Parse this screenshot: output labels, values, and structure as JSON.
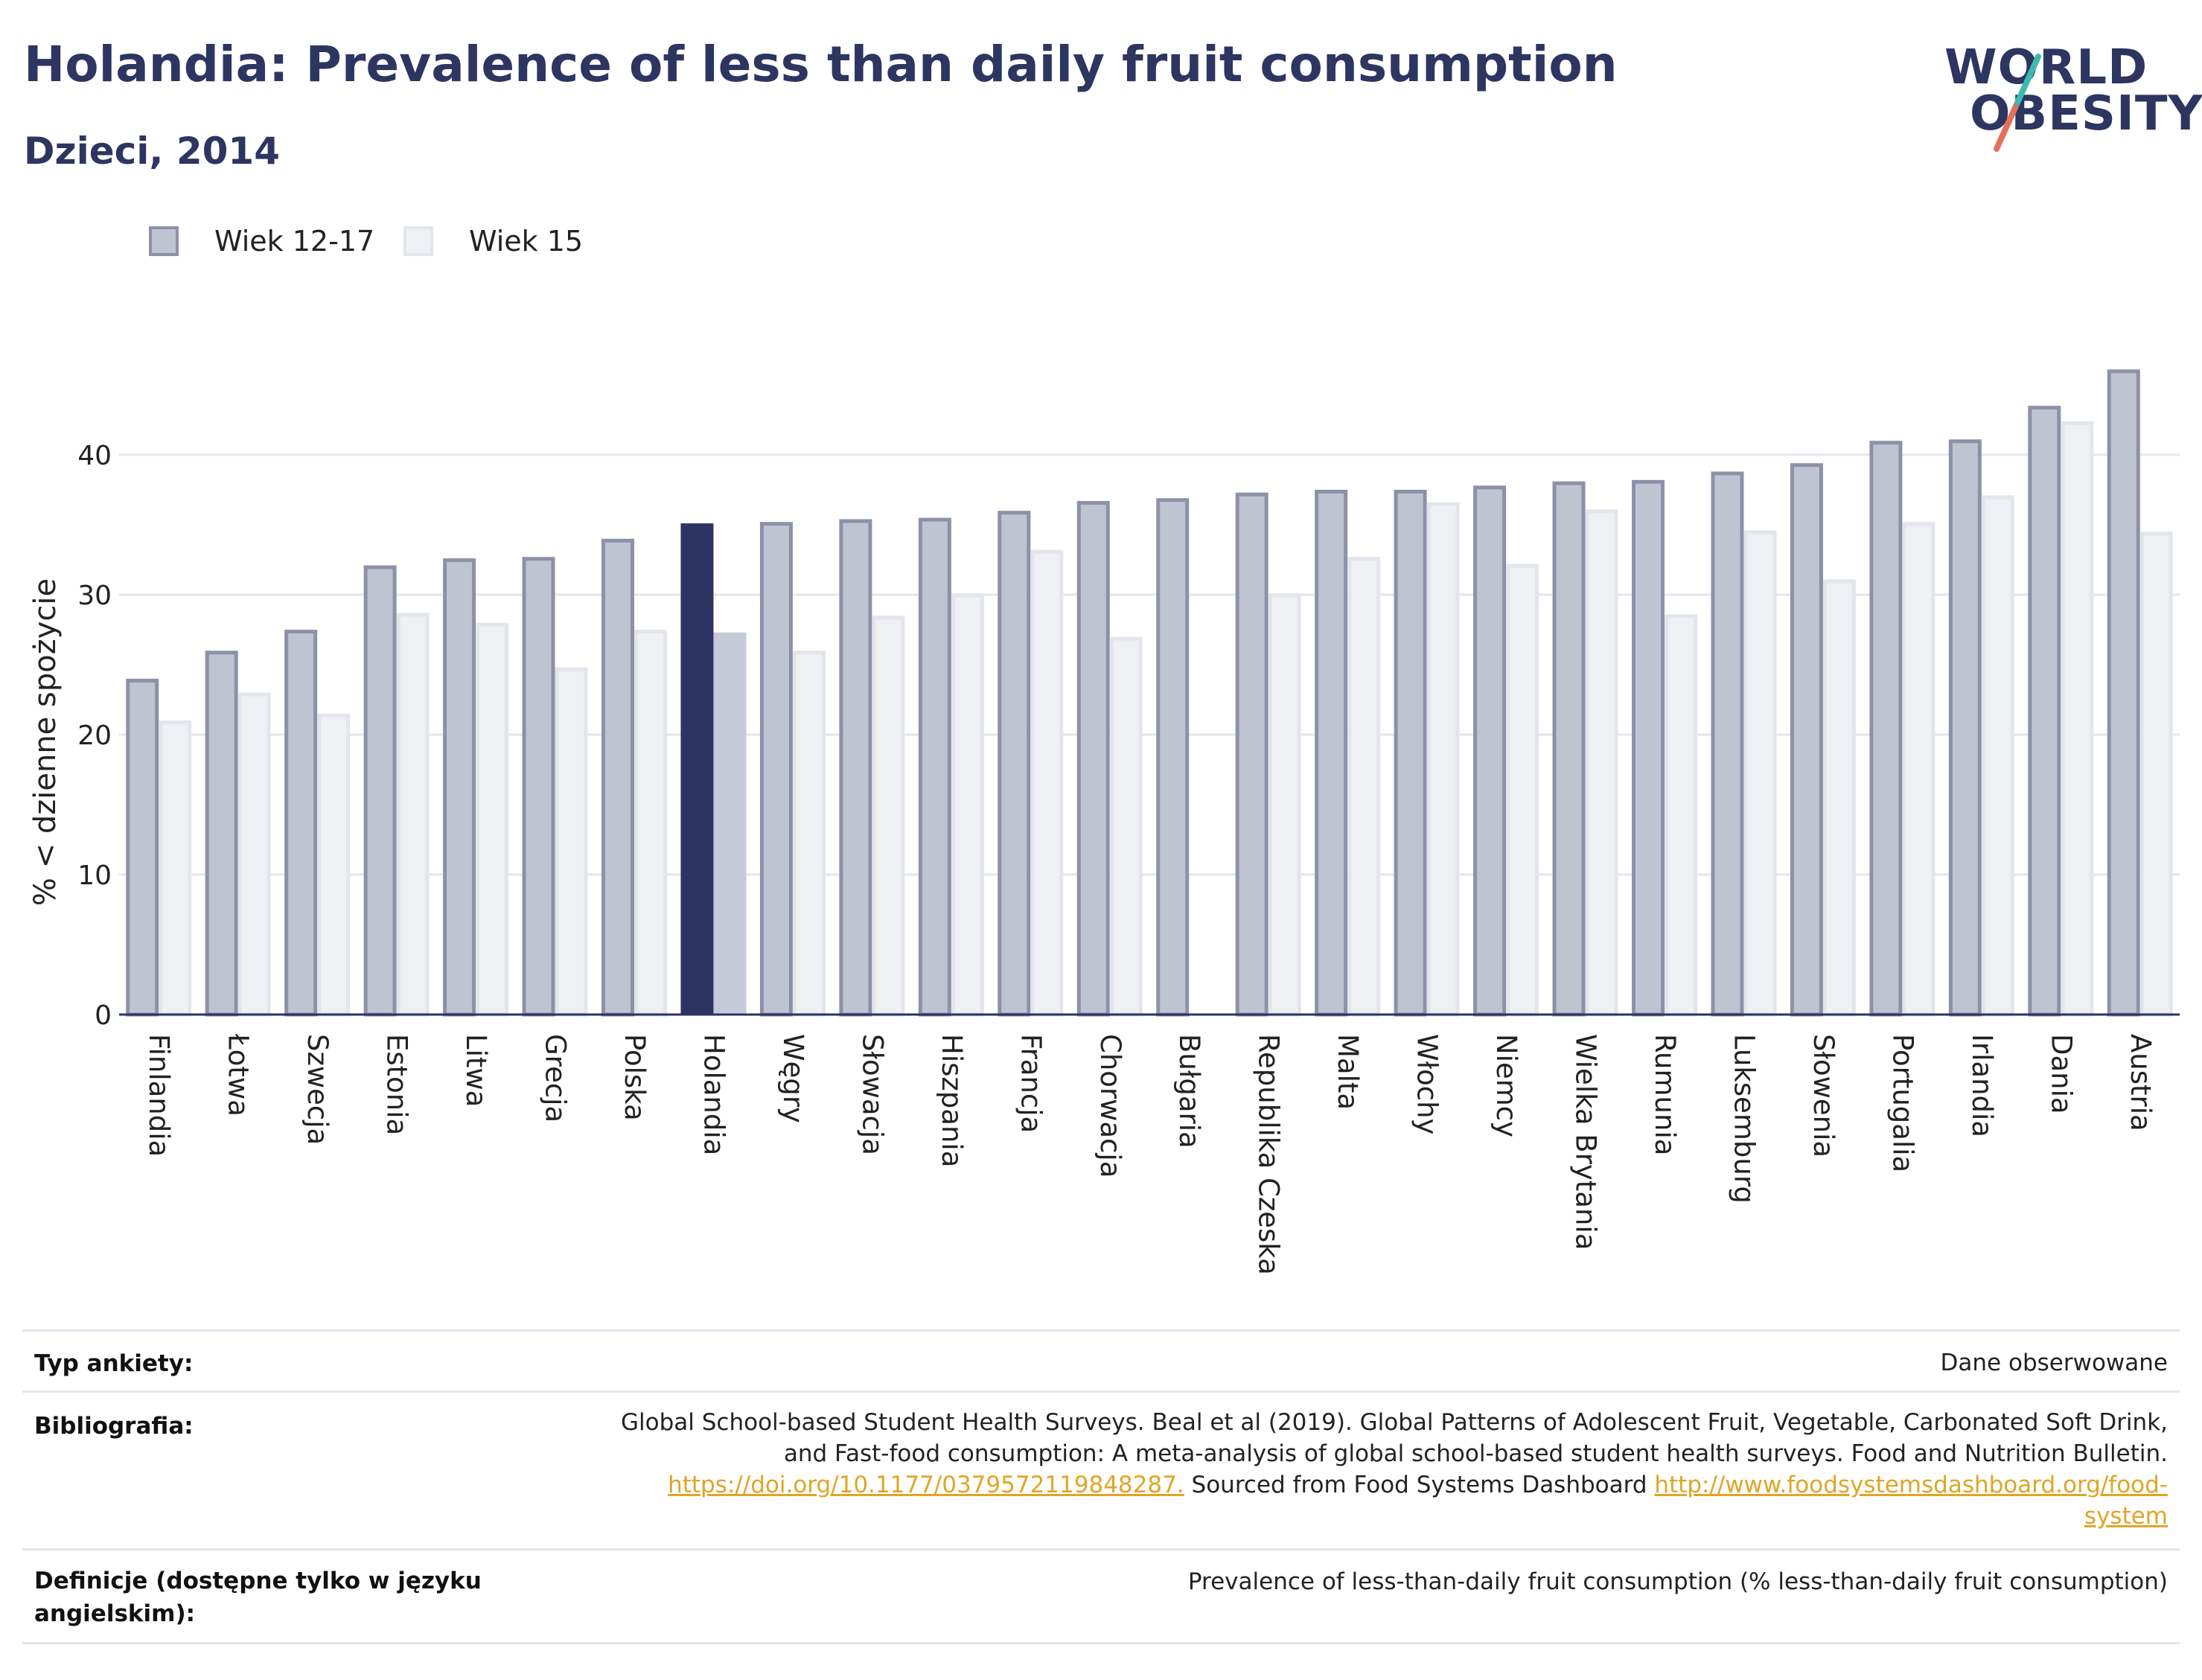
{
  "header": {
    "title": "Holandia: Prevalence of less than daily fruit consumption",
    "subtitle": "Dzieci, 2014"
  },
  "logo": {
    "line1": "WORLD",
    "line2": "OBESITY"
  },
  "colors": {
    "series1": "#c0c3d2",
    "series1_stroke": "#8d91a8",
    "series2": "#eef0f4",
    "series2_stroke": "#e3e5ec",
    "highlight1": "#2b3462",
    "highlight2": "#c6c9d7",
    "grid": "#e4e6ee",
    "axis": "#2b3462"
  },
  "chart_data": {
    "type": "bar",
    "ylabel": "% < dzienne spożycie",
    "yticks": [
      0,
      10,
      20,
      30,
      40
    ],
    "ylim": [
      0,
      48
    ],
    "highlight": "Holandia",
    "legend_position": "top-left",
    "categories": [
      "Finlandia",
      "Łotwa",
      "Szwecja",
      "Estonia",
      "Litwa",
      "Grecja",
      "Polska",
      "Holandia",
      "Węgry",
      "Słowacja",
      "Hiszpania",
      "Francja",
      "Chorwacja",
      "Bułgaria",
      "Republika Czeska",
      "Malta",
      "Włochy",
      "Niemcy",
      "Wielka Brytania",
      "Rumunia",
      "Luksemburg",
      "Słowenia",
      "Portugalia",
      "Irlandia",
      "Dania",
      "Austria"
    ],
    "series": [
      {
        "name": "Wiek 12-17",
        "values": [
          24.0,
          26.0,
          27.5,
          32.1,
          32.6,
          32.7,
          34.0,
          35.1,
          35.2,
          35.4,
          35.5,
          36.0,
          36.7,
          36.9,
          37.3,
          37.5,
          37.5,
          37.8,
          38.1,
          38.2,
          38.8,
          39.4,
          41.0,
          41.1,
          43.5,
          46.1
        ]
      },
      {
        "name": "Wiek 15",
        "values": [
          21.0,
          23.0,
          21.5,
          28.7,
          28.0,
          24.8,
          27.5,
          27.3,
          26.0,
          28.5,
          30.1,
          33.2,
          27.0,
          null,
          30.1,
          32.7,
          36.6,
          32.2,
          36.1,
          28.6,
          34.6,
          31.1,
          35.2,
          37.1,
          42.4,
          34.5
        ]
      }
    ]
  },
  "footer": {
    "rows": [
      {
        "label": "Typ ankiety:",
        "value": "Dane obserwowane"
      },
      {
        "label": "Bibliografia:",
        "value_line1": "Global School-based Student Health Surveys. Beal et al (2019). Global Patterns of Adolescent Fruit, Vegetable, Carbonated Soft Drink,",
        "value_line2": "and Fast-food consumption: A meta-analysis of global school-based student health surveys. Food and Nutrition Bulletin.",
        "link1": "https://doi.org/10.1177/0379572119848287.",
        "mid_text": " Sourced from Food Systems Dashboard ",
        "link2_part1": "http://www.foodsystemsdashboard.org/food-",
        "link2_part2": "system"
      },
      {
        "label_line1": "Definicje (dostępne tylko w języku",
        "label_line2": "angielskim):",
        "value": "Prevalence of less-than-daily fruit consumption (% less-than-daily fruit consumption)"
      }
    ]
  }
}
